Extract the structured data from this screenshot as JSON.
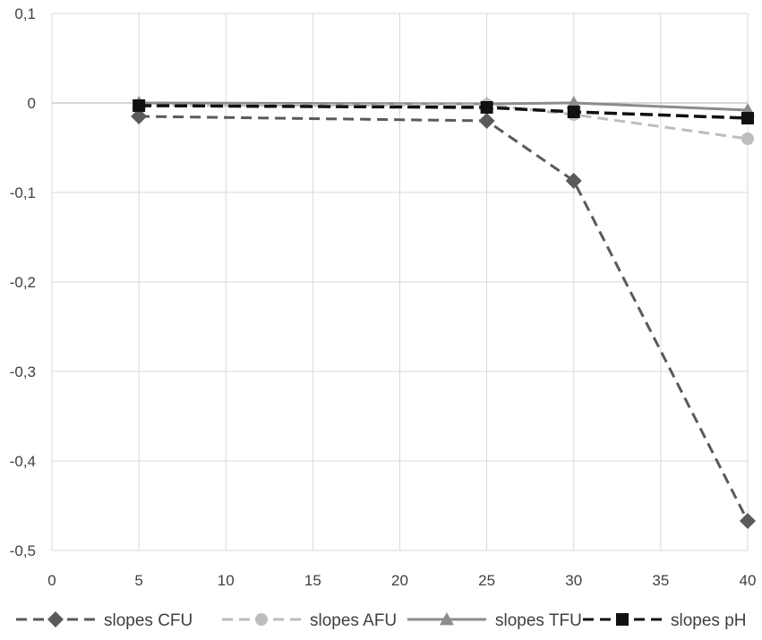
{
  "chart_data": {
    "type": "line",
    "title": "",
    "xlabel": "",
    "ylabel": "",
    "xlim": [
      0,
      40
    ],
    "ylim": [
      -0.5,
      0.1
    ],
    "x_ticks": [
      "0",
      "5",
      "10",
      "15",
      "20",
      "25",
      "30",
      "35",
      "40"
    ],
    "y_ticks": [
      "0,1",
      "0",
      "-0,1",
      "-0,2",
      "-0,3",
      "-0,4",
      "-0,5"
    ],
    "grid": true,
    "legend_position": "bottom",
    "x": [
      5,
      25,
      30,
      40
    ],
    "series": [
      {
        "name": "slopes CFU",
        "values": [
          -0.015,
          -0.02,
          -0.087,
          -0.467
        ],
        "color": "#5a5a5a",
        "dash": "dashed",
        "marker": "diamond"
      },
      {
        "name": "slopes AFU",
        "values": [
          -0.003,
          -0.002,
          -0.013,
          -0.04
        ],
        "color": "#bdbdbd",
        "dash": "dashed",
        "marker": "circle"
      },
      {
        "name": "slopes TFU",
        "values": [
          0.0,
          -0.001,
          0.0,
          -0.008
        ],
        "color": "#8c8c8c",
        "dash": "solid",
        "marker": "triangle"
      },
      {
        "name": "slopes pH",
        "values": [
          -0.003,
          -0.005,
          -0.01,
          -0.017
        ],
        "color": "#111111",
        "dash": "dashed",
        "marker": "square"
      }
    ]
  }
}
